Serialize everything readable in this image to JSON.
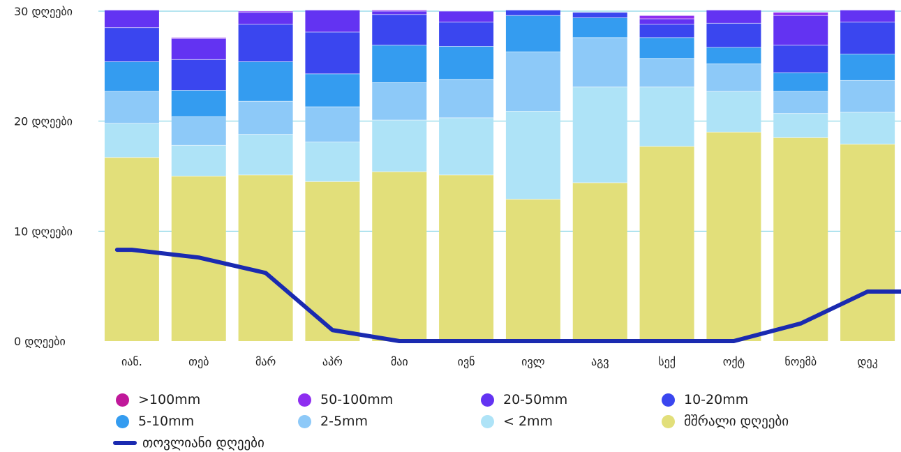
{
  "chart_data": {
    "type": "bar",
    "stacked": true,
    "categories": [
      "იან.",
      "თებ",
      "მარ",
      "აპრ",
      "მაი",
      "ივნ",
      "ივლ",
      "აგვ",
      "სექ",
      "ოქტ",
      "ნოემბ",
      "დეკ"
    ],
    "y_tick_labels": [
      "0 დღეები",
      "10 დღეები",
      "20 დღეები",
      "30 დღეები"
    ],
    "y_ticks": [
      0,
      10,
      20,
      30
    ],
    "ylim": [
      0,
      30
    ],
    "grid": true,
    "legend_position": "bottom",
    "series": [
      {
        "name": "მშრალი დღეები",
        "color": "#e2df7a",
        "values": [
          16.7,
          15.0,
          15.1,
          14.5,
          15.4,
          15.1,
          12.9,
          14.4,
          17.7,
          19.0,
          18.5,
          17.9
        ]
      },
      {
        "name": "< 2mm",
        "color": "#aee3f7",
        "values": [
          3.1,
          2.8,
          3.7,
          3.6,
          4.7,
          5.2,
          8.0,
          8.7,
          5.4,
          3.7,
          2.2,
          2.9
        ]
      },
      {
        "name": "2-5mm",
        "color": "#8dc9f8",
        "values": [
          2.9,
          2.6,
          3.0,
          3.2,
          3.4,
          3.5,
          5.4,
          4.5,
          2.6,
          2.5,
          2.0,
          2.9
        ]
      },
      {
        "name": "5-10mm",
        "color": "#349cf0",
        "values": [
          2.7,
          2.4,
          3.6,
          3.0,
          3.4,
          3.0,
          3.3,
          1.8,
          1.9,
          1.5,
          1.7,
          2.4
        ]
      },
      {
        "name": "10-20mm",
        "color": "#3a46ef",
        "values": [
          3.1,
          2.8,
          3.4,
          3.8,
          2.8,
          2.2,
          0.5,
          0.5,
          1.2,
          2.2,
          2.5,
          2.9
        ]
      },
      {
        "name": "20-50mm",
        "color": "#6333f2",
        "values": [
          1.6,
          1.9,
          1.1,
          2.0,
          0.3,
          1.0,
          0.0,
          0.0,
          0.5,
          1.2,
          2.7,
          1.1
        ]
      },
      {
        "name": "50-100mm",
        "color": "#8e2ef0",
        "values": [
          0.0,
          0.1,
          0.1,
          0.0,
          0.1,
          0.0,
          0.0,
          0.0,
          0.3,
          0.0,
          0.3,
          0.0
        ]
      },
      {
        "name": ">100mm",
        "color": "#c0189a",
        "values": [
          0,
          0,
          0,
          0,
          0,
          0,
          0,
          0,
          0,
          0,
          0,
          0
        ]
      }
    ],
    "line_series": {
      "name": "თოვლიანი დღეები",
      "color": "#1a2ab0",
      "values": [
        8.3,
        7.6,
        6.2,
        1.0,
        0.0,
        0.0,
        0.0,
        0.0,
        0.0,
        0.0,
        1.6,
        4.5
      ]
    }
  },
  "legend": {
    "items": [
      {
        "label": ">100mm",
        "color": "#c0189a",
        "kind": "dot"
      },
      {
        "label": "50-100mm",
        "color": "#8e2ef0",
        "kind": "dot"
      },
      {
        "label": "20-50mm",
        "color": "#6333f2",
        "kind": "dot"
      },
      {
        "label": "10-20mm",
        "color": "#3a46ef",
        "kind": "dot"
      },
      {
        "label": "5-10mm",
        "color": "#349cf0",
        "kind": "dot"
      },
      {
        "label": "2-5mm",
        "color": "#8dc9f8",
        "kind": "dot"
      },
      {
        "label": "< 2mm",
        "color": "#aee3f7",
        "kind": "dot"
      },
      {
        "label": "მშრალი დღეები",
        "color": "#e2df7a",
        "kind": "dot"
      },
      {
        "label": "თოვლიანი დღეები",
        "color": "#1a2ab0",
        "kind": "line"
      }
    ]
  }
}
